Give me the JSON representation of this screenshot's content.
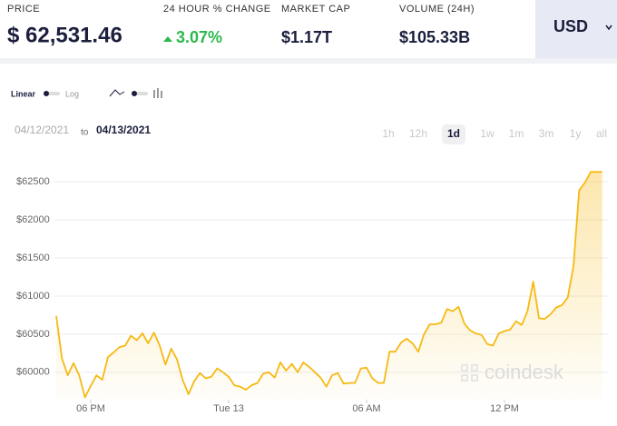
{
  "header": {
    "stats": [
      {
        "label": "PRICE",
        "value": "$ 62,531.46"
      },
      {
        "label": "24 HOUR % CHANGE",
        "value": "3.07%"
      },
      {
        "label": "MARKET CAP",
        "value": "$1.17T"
      },
      {
        "label": "VOLUME (24H)",
        "value": "$105.33B"
      }
    ],
    "currency": "USD"
  },
  "controls": {
    "scale": [
      "Linear",
      "Log"
    ],
    "date_from": "04/12/2021",
    "date_sep": "to",
    "date_to": "04/13/2021",
    "ranges": [
      "1h",
      "12h",
      "1d",
      "1w",
      "1m",
      "3m",
      "1y",
      "all"
    ]
  },
  "watermark": "coindesk",
  "chart_data": {
    "type": "line",
    "x": [
      16.5,
      16.75,
      17,
      17.25,
      17.5,
      17.75,
      18,
      18.25,
      18.5,
      18.75,
      19,
      19.25,
      19.5,
      19.75,
      20,
      20.25,
      20.5,
      20.75,
      21,
      21.25,
      21.5,
      21.75,
      22,
      22.25,
      22.5,
      22.75,
      23,
      23.25,
      23.5,
      23.75,
      24,
      24.25,
      24.5,
      24.75,
      25,
      25.25,
      25.5,
      25.75,
      26,
      26.25,
      26.5,
      26.75,
      27,
      27.25,
      27.5,
      27.75,
      28,
      28.25,
      28.5,
      28.75,
      29,
      29.25,
      29.5,
      29.75,
      30,
      30.25,
      30.5,
      30.75,
      31,
      31.25,
      31.5,
      31.75,
      32,
      32.25,
      32.5,
      32.75,
      33,
      33.25,
      33.5,
      33.75,
      34,
      34.25,
      34.5,
      34.75,
      35,
      35.25,
      35.5,
      35.75,
      36,
      36.25,
      36.5,
      36.75,
      37,
      37.25,
      37.5,
      37.75,
      38,
      38.25,
      38.5,
      38.75,
      39,
      39.25,
      39.5,
      39.75,
      40,
      40.25
    ],
    "series": [
      {
        "color": "#f6b913",
        "values": [
          60740,
          60180,
          59960,
          60120,
          59960,
          59670,
          59820,
          59960,
          59900,
          60200,
          60260,
          60330,
          60350,
          60480,
          60420,
          60510,
          60380,
          60520,
          60350,
          60100,
          60310,
          60170,
          59900,
          59710,
          59880,
          59990,
          59920,
          59940,
          60050,
          60000,
          59940,
          59830,
          59810,
          59770,
          59830,
          59860,
          59980,
          60000,
          59930,
          60130,
          60020,
          60110,
          60000,
          60130,
          60070,
          60000,
          59930,
          59810,
          59960,
          59990,
          59850,
          59860,
          59860,
          60050,
          60060,
          59920,
          59860,
          59860,
          60270,
          60270,
          60390,
          60440,
          60380,
          60270,
          60500,
          60630,
          60630,
          60650,
          60830,
          60800,
          60860,
          60640,
          60550,
          60510,
          60490,
          60370,
          60350,
          60510,
          60540,
          60560,
          60670,
          60620,
          60800,
          61190,
          60710,
          60700,
          60760,
          60850,
          60880,
          60980,
          61390,
          62390,
          62490,
          62630,
          62630,
          62630
        ]
      }
    ],
    "xlim": [
      16.5,
      40.5
    ],
    "xticks": [
      {
        "value": 18,
        "label": "06 PM"
      },
      {
        "value": 24,
        "label": "Tue 13"
      },
      {
        "value": 30,
        "label": "06 AM"
      },
      {
        "value": 36,
        "label": "12 PM"
      }
    ],
    "ylim": [
      59640,
      62860
    ],
    "yticks": [
      {
        "value": 60000,
        "label": "$60000"
      },
      {
        "value": 60500,
        "label": "$60500"
      },
      {
        "value": 61000,
        "label": "$61000"
      },
      {
        "value": 61500,
        "label": "$61500"
      },
      {
        "value": 62000,
        "label": "$62000"
      },
      {
        "value": 62500,
        "label": "$62500"
      }
    ],
    "grid": true
  }
}
